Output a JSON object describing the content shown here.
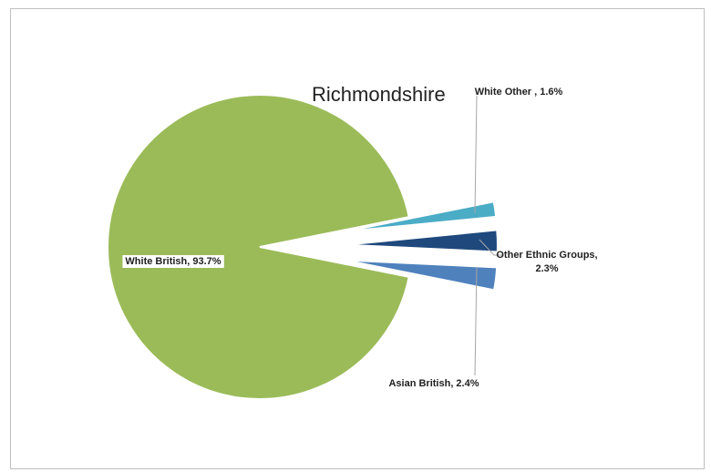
{
  "chart_data": {
    "type": "pie",
    "title": "Richmondshire",
    "slices": [
      {
        "label": "White British",
        "value": 93.7,
        "value_label": "White British, 93.7%",
        "color": "#9bbb59",
        "exploded": false
      },
      {
        "label": "White Other",
        "value": 1.6,
        "value_label": "White Other , 1.6%",
        "color": "#4bacc6",
        "exploded": true
      },
      {
        "label": "Other Ethnic Groups",
        "value": 2.3,
        "value_label": [
          "Other Ethnic Groups,",
          "2.3%"
        ],
        "color": "#1f497d",
        "exploded": true
      },
      {
        "label": "Asian British",
        "value": 2.4,
        "value_label": "Asian British, 2.4%",
        "color": "#4f81bd",
        "exploded": true
      }
    ],
    "legend": "none"
  }
}
